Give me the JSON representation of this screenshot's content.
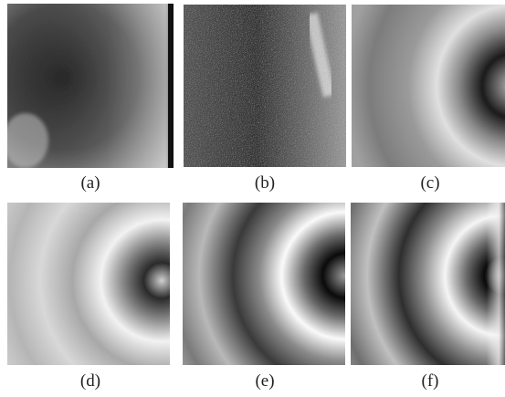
{
  "figure": {
    "panels": [
      {
        "label": "(a)",
        "description": "dark grainy texture, lighter toward right"
      },
      {
        "label": "(b)",
        "description": "noisy speckle texture with faint bright streak upper right"
      },
      {
        "label": "(c)",
        "description": "grainy curved fringe pattern, dark arc on right"
      },
      {
        "label": "(d)",
        "description": "pale fringes with dark curved arc near right"
      },
      {
        "label": "(e)",
        "description": "smooth high-contrast curved fringes"
      },
      {
        "label": "(f)",
        "description": "smooth curved fringes, mirrored fringe at right edge"
      }
    ]
  }
}
